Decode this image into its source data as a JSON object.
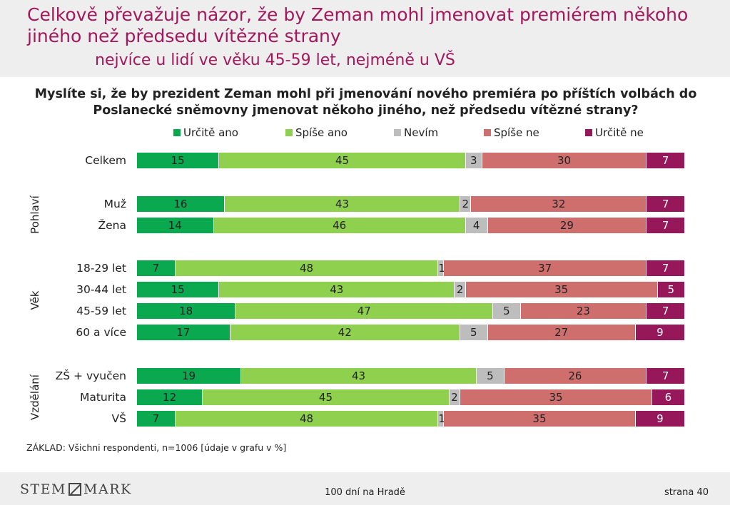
{
  "header": {
    "title": "Celkově převažuje názor, že by Zeman mohl jmenovat premiérem někoho jiného než předsedu vítězné strany",
    "subtitle": "nejvíce u lidí ve věku 45-59 let, nejméně u VŠ"
  },
  "chart_data": {
    "type": "bar",
    "orientation": "horizontal",
    "stacked": true,
    "unit": "%",
    "title": "Myslíte si, že by prezident Zeman mohl při jmenování nového premiéra po příštích volbách do Poslanecké sněmovny jmenovat někoho jiného, než předsedu vítězné strany?",
    "legend_position": "top",
    "series": [
      {
        "name": "Určitě ano",
        "color": "#0aa94f"
      },
      {
        "name": "Spíše ano",
        "color": "#8fd14f"
      },
      {
        "name": "Nevím",
        "color": "#bdbdbd"
      },
      {
        "name": "Spíše ne",
        "color": "#cf6f6d"
      },
      {
        "name": "Určitě ne",
        "color": "#97185a"
      }
    ],
    "groups": [
      {
        "label": "",
        "rows": [
          {
            "label": "Celkem",
            "values": [
              15,
              45,
              3,
              30,
              7
            ]
          }
        ]
      },
      {
        "label": "Pohlaví",
        "rows": [
          {
            "label": "Muž",
            "values": [
              16,
              43,
              2,
              32,
              7
            ]
          },
          {
            "label": "Žena",
            "values": [
              14,
              46,
              4,
              29,
              7
            ]
          }
        ]
      },
      {
        "label": "Věk",
        "rows": [
          {
            "label": "18-29 let",
            "values": [
              7,
              48,
              1,
              37,
              7
            ]
          },
          {
            "label": "30-44 let",
            "values": [
              15,
              43,
              2,
              35,
              5
            ]
          },
          {
            "label": "45-59 let",
            "values": [
              18,
              47,
              5,
              23,
              7
            ]
          },
          {
            "label": "60 a více",
            "values": [
              17,
              42,
              5,
              27,
              9
            ]
          }
        ]
      },
      {
        "label": "Vzdělání",
        "rows": [
          {
            "label": "ZŠ + vyučen",
            "values": [
              19,
              43,
              5,
              26,
              7
            ]
          },
          {
            "label": "Maturita",
            "values": [
              12,
              45,
              2,
              35,
              6
            ]
          },
          {
            "label": "VŠ",
            "values": [
              7,
              48,
              1,
              35,
              9
            ]
          }
        ]
      }
    ]
  },
  "base_note": "ZÁKLAD: Všichni respondenti, n=1006 [údaje v grafu v %]",
  "footer": {
    "logo_left": "STEM",
    "logo_right": "MARK",
    "center": "100 dní na Hradě",
    "page": "strana 40"
  }
}
